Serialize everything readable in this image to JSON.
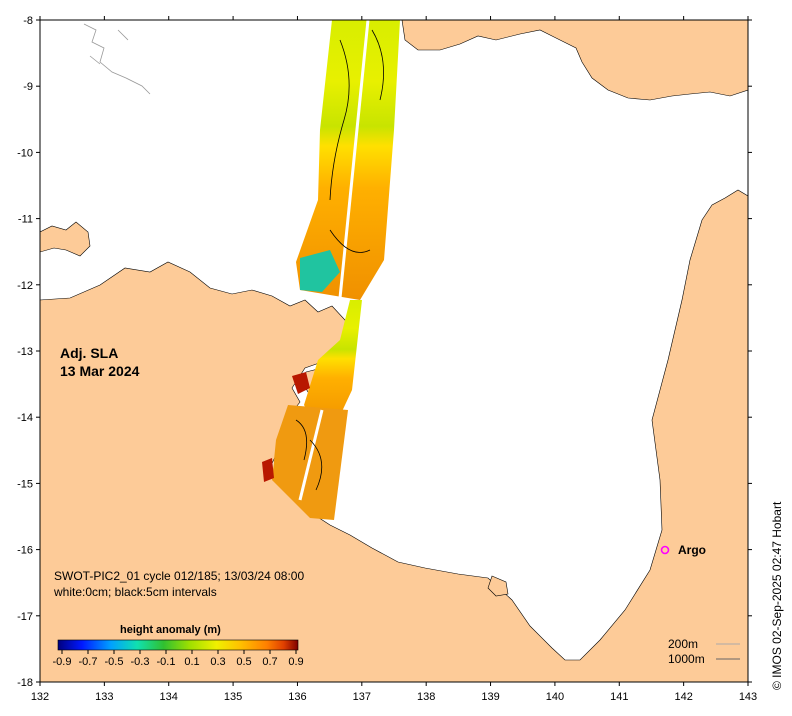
{
  "map": {
    "title_line1": "Adj. SLA",
    "title_line2": "13 Mar 2024",
    "source_line1": "SWOT-PIC2_01 cycle 012/185; 13/03/24 08:00",
    "source_line2": "white:0cm; black:5cm intervals",
    "credit": "© IMOS 02-Sep-2025 02:47 Hobart",
    "lon_ticks": [
      "132",
      "133",
      "134",
      "135",
      "136",
      "137",
      "138",
      "139",
      "140",
      "141",
      "142",
      "143"
    ],
    "lat_ticks": [
      "-8",
      "-9",
      "-10",
      "-11",
      "-12",
      "-13",
      "-14",
      "-15",
      "-16",
      "-17",
      "-18"
    ],
    "lon_range": [
      132,
      143
    ],
    "lat_range": [
      -8,
      -18
    ],
    "land_color": "#fdcb98",
    "sea_color": "#ffffff"
  },
  "colorbar": {
    "title": "height anomaly (m)",
    "ticks": [
      "-0.9",
      "-0.7",
      "-0.5",
      "-0.3",
      "-0.1",
      "0.1",
      "0.3",
      "0.5",
      "0.7",
      "0.9"
    ],
    "range": [
      -0.9,
      0.9
    ],
    "colors": [
      "#00007f",
      "#0019ff",
      "#00a0ff",
      "#10e0b0",
      "#30c030",
      "#a0e000",
      "#f0f000",
      "#ffc000",
      "#ff8000",
      "#e04000",
      "#7f0000"
    ]
  },
  "legend": {
    "depth_200": "200m",
    "depth_1000": "1000m"
  },
  "argo": {
    "label": "Argo",
    "marker_color": "#ff00ff",
    "lon": 141.7,
    "lat": -16.0
  }
}
